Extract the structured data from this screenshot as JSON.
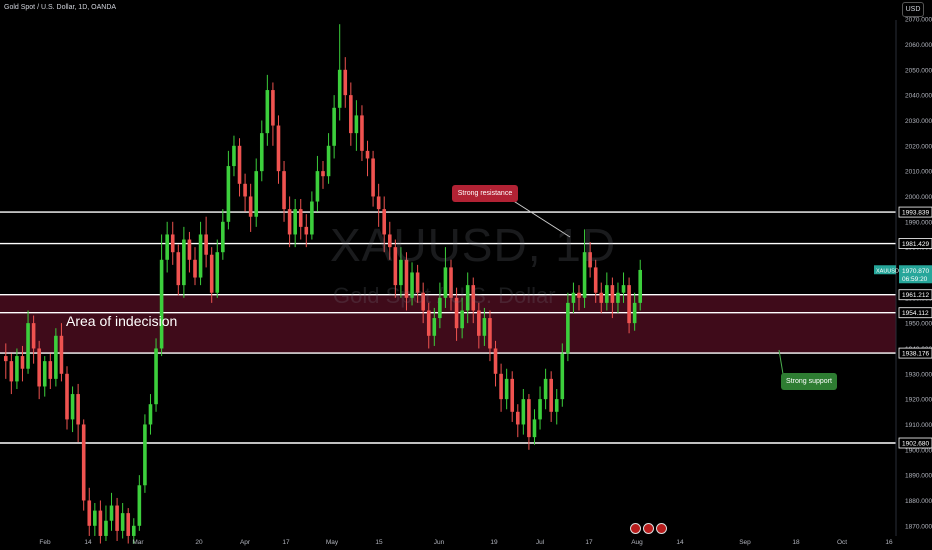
{
  "header": {
    "title": "Gold Spot / U.S. Dollar, 1D, OANDA",
    "currency": "USD"
  },
  "watermark": {
    "symbol": "XAUUSD, 1D",
    "name": "Gold Spot / U.S. Dollar"
  },
  "annotations": {
    "zone_label": "Area of indecision",
    "resistance_label": "Strong resistance",
    "support_label": "Strong support"
  },
  "colors": {
    "up": "#26a69a",
    "up_bright": "#3ccf3c",
    "down": "#ef5350",
    "zone_fill": "#4a0d1e",
    "level_line": "#ffffff",
    "resistance_callout": "#b22234",
    "support_callout": "#2e7d32"
  },
  "chart_data": {
    "type": "candlestick",
    "title": "Gold Spot / U.S. Dollar, 1D, OANDA",
    "x_tick_labels": [
      "Feb",
      "14",
      "Mar",
      "20",
      "Apr",
      "17",
      "May",
      "15",
      "Jun",
      "19",
      "Jul",
      "17",
      "Aug",
      "14",
      "Sep",
      "18",
      "Oct",
      "16"
    ],
    "y_tick_labels": [
      "2070.000",
      "2060.000",
      "2050.000",
      "2040.000",
      "2030.000",
      "2020.000",
      "2010.000",
      "2000.000",
      "1990.000",
      "1980.000",
      "1970.000",
      "1960.000",
      "1950.000",
      "1940.000",
      "1930.000",
      "1920.000",
      "1910.000",
      "1900.000",
      "1890.000",
      "1880.000",
      "1870.000"
    ],
    "ylim": [
      1864,
      2074
    ],
    "current_price": {
      "label": "XAUUSD",
      "value": "1970.870",
      "countdown": "06:59:20"
    },
    "levels": [
      {
        "label": "1993.839",
        "value": 1993.839
      },
      {
        "label": "1981.429",
        "value": 1981.429
      },
      {
        "label": "1961.212",
        "value": 1961.212
      },
      {
        "label": "1954.112",
        "value": 1954.112
      },
      {
        "label": "1938.176",
        "value": 1938.176
      },
      {
        "label": "1902.680",
        "value": 1902.68
      }
    ],
    "zone": {
      "from": 1938.176,
      "to": 1961.212
    },
    "candles": [
      [
        1937,
        1935,
        1942,
        1928
      ],
      [
        1935,
        1927,
        1938,
        1922
      ],
      [
        1927,
        1937,
        1940,
        1924
      ],
      [
        1937,
        1932,
        1941,
        1927
      ],
      [
        1932,
        1950,
        1955,
        1930
      ],
      [
        1950,
        1940,
        1953,
        1934
      ],
      [
        1940,
        1925,
        1943,
        1920
      ],
      [
        1925,
        1935,
        1937,
        1921
      ],
      [
        1935,
        1928,
        1938,
        1924
      ],
      [
        1928,
        1945,
        1948,
        1925
      ],
      [
        1945,
        1930,
        1950,
        1927
      ],
      [
        1930,
        1912,
        1933,
        1908
      ],
      [
        1912,
        1922,
        1925,
        1907
      ],
      [
        1922,
        1910,
        1926,
        1903
      ],
      [
        1910,
        1880,
        1912,
        1876
      ],
      [
        1880,
        1870,
        1885,
        1866
      ],
      [
        1870,
        1876,
        1879,
        1866
      ],
      [
        1876,
        1866,
        1880,
        1863
      ],
      [
        1866,
        1872,
        1878,
        1864
      ],
      [
        1872,
        1878,
        1883,
        1868
      ],
      [
        1878,
        1868,
        1881,
        1864
      ],
      [
        1868,
        1875,
        1879,
        1865
      ],
      [
        1875,
        1866,
        1877,
        1863
      ],
      [
        1866,
        1870,
        1873,
        1863
      ],
      [
        1870,
        1886,
        1890,
        1868
      ],
      [
        1886,
        1910,
        1914,
        1883
      ],
      [
        1910,
        1918,
        1922,
        1906
      ],
      [
        1918,
        1940,
        1944,
        1915
      ],
      [
        1940,
        1975,
        1985,
        1937
      ],
      [
        1975,
        1985,
        1990,
        1970
      ],
      [
        1985,
        1978,
        1990,
        1973
      ],
      [
        1978,
        1965,
        1981,
        1961
      ],
      [
        1965,
        1983,
        1988,
        1960
      ],
      [
        1983,
        1975,
        1986,
        1970
      ],
      [
        1975,
        1968,
        1980,
        1965
      ],
      [
        1968,
        1985,
        1990,
        1965
      ],
      [
        1985,
        1977,
        1992,
        1972
      ],
      [
        1977,
        1962,
        1980,
        1958
      ],
      [
        1962,
        1978,
        1983,
        1960
      ],
      [
        1978,
        1990,
        1995,
        1975
      ],
      [
        1990,
        2012,
        2018,
        1987
      ],
      [
        2012,
        2020,
        2024,
        2008
      ],
      [
        2020,
        2005,
        2023,
        2000
      ],
      [
        2005,
        2000,
        2009,
        1994
      ],
      [
        2000,
        1992,
        2005,
        1986
      ],
      [
        1992,
        2010,
        2015,
        1988
      ],
      [
        2010,
        2025,
        2030,
        2006
      ],
      [
        2025,
        2042,
        2048,
        2020
      ],
      [
        2042,
        2028,
        2045,
        2020
      ],
      [
        2028,
        2010,
        2032,
        2005
      ],
      [
        2010,
        1995,
        2014,
        1990
      ],
      [
        1995,
        1985,
        2000,
        1980
      ],
      [
        1985,
        1995,
        1999,
        1980
      ],
      [
        1995,
        1988,
        1999,
        1983
      ],
      [
        1988,
        1985,
        1993,
        1980
      ],
      [
        1985,
        1998,
        2002,
        1983
      ],
      [
        1998,
        2010,
        2016,
        1994
      ],
      [
        2010,
        2008,
        2014,
        2003
      ],
      [
        2008,
        2020,
        2025,
        2005
      ],
      [
        2020,
        2035,
        2040,
        2015
      ],
      [
        2035,
        2050,
        2068,
        2030
      ],
      [
        2050,
        2040,
        2055,
        2035
      ],
      [
        2040,
        2025,
        2045,
        2020
      ],
      [
        2025,
        2032,
        2038,
        2018
      ],
      [
        2032,
        2018,
        2036,
        2014
      ],
      [
        2018,
        2015,
        2022,
        2008
      ],
      [
        2015,
        2000,
        2018,
        1996
      ],
      [
        2000,
        1995,
        2005,
        1988
      ],
      [
        1995,
        1985,
        2000,
        1978
      ],
      [
        1985,
        1980,
        1990,
        1975
      ],
      [
        1980,
        1965,
        1983,
        1960
      ],
      [
        1965,
        1975,
        1980,
        1960
      ],
      [
        1975,
        1960,
        1978,
        1955
      ],
      [
        1960,
        1970,
        1974,
        1957
      ],
      [
        1970,
        1962,
        1973,
        1958
      ],
      [
        1962,
        1955,
        1966,
        1950
      ],
      [
        1955,
        1945,
        1958,
        1940
      ],
      [
        1945,
        1952,
        1956,
        1941
      ],
      [
        1952,
        1960,
        1966,
        1948
      ],
      [
        1960,
        1972,
        1980,
        1956
      ],
      [
        1972,
        1960,
        1975,
        1955
      ],
      [
        1960,
        1948,
        1964,
        1943
      ],
      [
        1948,
        1955,
        1960,
        1944
      ],
      [
        1955,
        1965,
        1970,
        1950
      ],
      [
        1965,
        1955,
        1968,
        1950
      ],
      [
        1955,
        1945,
        1958,
        1940
      ],
      [
        1945,
        1952,
        1956,
        1941
      ],
      [
        1952,
        1940,
        1955,
        1935
      ],
      [
        1940,
        1930,
        1943,
        1925
      ],
      [
        1930,
        1920,
        1934,
        1915
      ],
      [
        1920,
        1928,
        1932,
        1916
      ],
      [
        1928,
        1915,
        1931,
        1911
      ],
      [
        1915,
        1910,
        1918,
        1905
      ],
      [
        1910,
        1920,
        1924,
        1906
      ],
      [
        1920,
        1905,
        1922,
        1900
      ],
      [
        1905,
        1912,
        1916,
        1902
      ],
      [
        1912,
        1920,
        1925,
        1908
      ],
      [
        1920,
        1928,
        1932,
        1916
      ],
      [
        1928,
        1915,
        1931,
        1911
      ],
      [
        1915,
        1920,
        1924,
        1910
      ],
      [
        1920,
        1938,
        1942,
        1917
      ],
      [
        1938,
        1958,
        1962,
        1935
      ],
      [
        1958,
        1962,
        1966,
        1954
      ],
      [
        1962,
        1960,
        1965,
        1955
      ],
      [
        1960,
        1978,
        1987,
        1956
      ],
      [
        1978,
        1972,
        1982,
        1968
      ],
      [
        1972,
        1962,
        1975,
        1958
      ],
      [
        1962,
        1958,
        1966,
        1954
      ],
      [
        1958,
        1965,
        1970,
        1955
      ],
      [
        1965,
        1958,
        1968,
        1952
      ],
      [
        1958,
        1962,
        1966,
        1954
      ],
      [
        1962,
        1965,
        1970,
        1958
      ],
      [
        1965,
        1950,
        1968,
        1946
      ],
      [
        1950,
        1958,
        1962,
        1947
      ],
      [
        1958,
        1971,
        1975,
        1955
      ]
    ]
  }
}
